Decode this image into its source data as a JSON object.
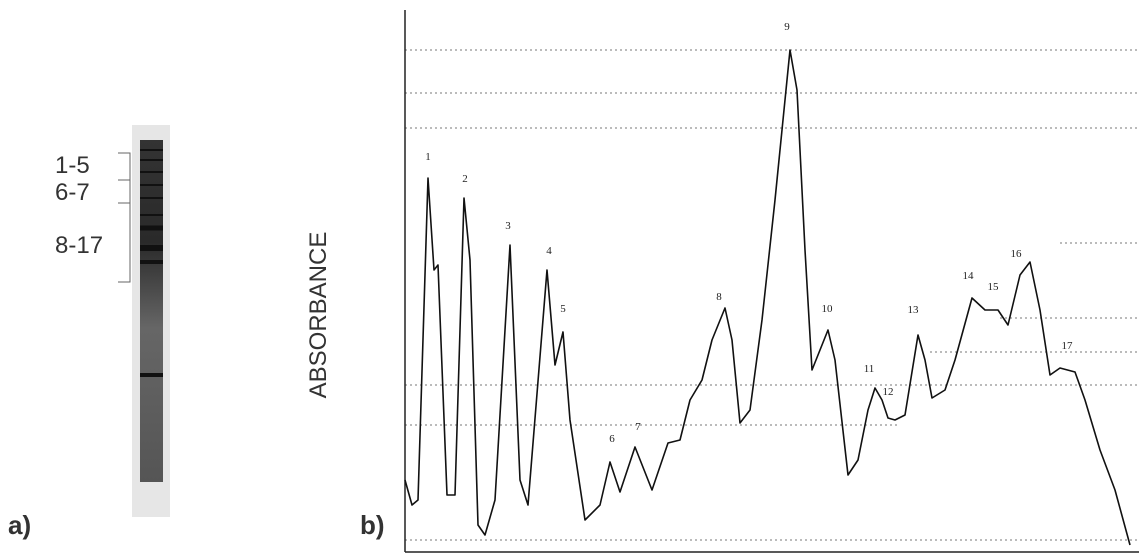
{
  "panel_a": {
    "label": "a)",
    "bands": [
      "1-5",
      "6-7",
      "8-17"
    ]
  },
  "panel_b": {
    "label": "b)",
    "y_label": "ABSORBANCE",
    "peaks": [
      "1",
      "2",
      "3",
      "4",
      "5",
      "6",
      "7",
      "8",
      "9",
      "10",
      "11",
      "12",
      "13",
      "14",
      "15",
      "16",
      "17"
    ]
  }
}
